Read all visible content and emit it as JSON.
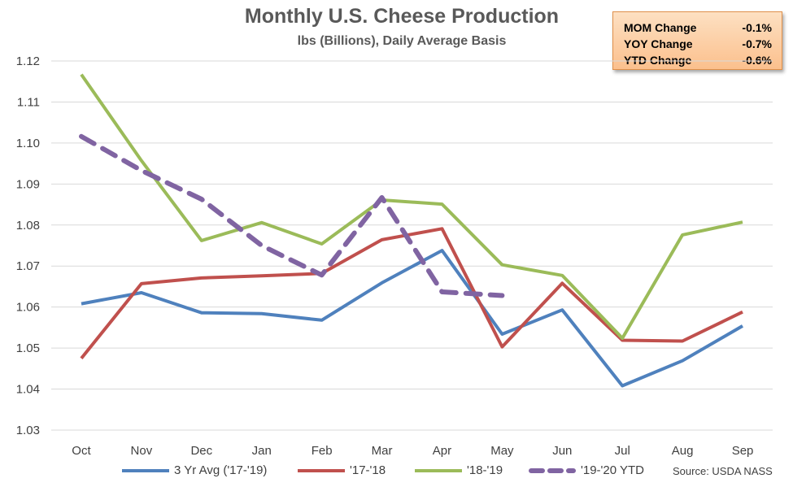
{
  "stats": {
    "mom_label": "MOM Change",
    "mom_value": "-0.1%",
    "yoy_label": "YOY Change",
    "yoy_value": "-0.7%",
    "ytd_label": "YTD Change",
    "ytd_value": "-0.6%"
  },
  "source": "Source: USDA NASS",
  "colors": {
    "series_3yr": "#4f81bd",
    "series_17_18": "#c0504d",
    "series_18_19": "#9bbb59",
    "series_19_20": "#8064a2",
    "grid": "#d9d9d9",
    "axis_text": "#404040"
  },
  "chart_data": {
    "type": "line",
    "title": "Monthly U.S. Cheese Production",
    "subtitle": "lbs (Billions), Daily Average Basis",
    "xlabel": "",
    "ylabel": "",
    "ylim": [
      1.03,
      1.12
    ],
    "y_ticks": [
      "1.03",
      "1.04",
      "1.05",
      "1.06",
      "1.07",
      "1.08",
      "1.09",
      "1.10",
      "1.11",
      "1.12"
    ],
    "grid": true,
    "legend_position": "bottom",
    "categories": [
      "Oct",
      "Nov",
      "Dec",
      "Jan",
      "Feb",
      "Mar",
      "Apr",
      "May",
      "Jun",
      "Jul",
      "Aug",
      "Sep"
    ],
    "series": [
      {
        "name": "3 Yr Avg ('17-'19)",
        "style": "solid",
        "values": [
          1.0608,
          1.0635,
          1.0586,
          1.0584,
          1.0568,
          1.0659,
          1.0738,
          1.0534,
          1.0593,
          1.0408,
          1.0469,
          1.0554
        ]
      },
      {
        "name": "'17-'18",
        "style": "solid",
        "values": [
          1.0475,
          1.0657,
          1.0671,
          1.0676,
          1.0682,
          1.0764,
          1.0791,
          1.0503,
          1.0658,
          1.0519,
          1.0517,
          1.0588
        ]
      },
      {
        "name": "'18-'19",
        "style": "solid",
        "values": [
          1.1167,
          1.0957,
          1.0762,
          1.0806,
          1.0754,
          1.0861,
          1.0851,
          1.0703,
          1.0677,
          1.0524,
          1.0776,
          1.0807
        ]
      },
      {
        "name": "'19-'20 YTD",
        "style": "dashed",
        "values": [
          1.1016,
          1.0933,
          1.0863,
          1.075,
          1.0678,
          1.0867,
          1.0637,
          1.0628,
          null,
          null,
          null,
          null
        ]
      }
    ]
  }
}
